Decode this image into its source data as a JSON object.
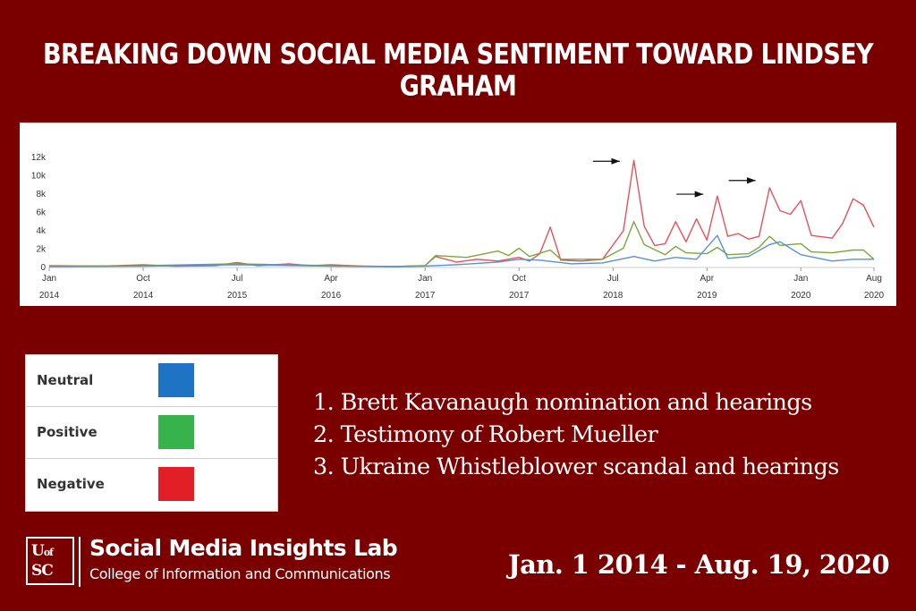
{
  "title": "BREAKING DOWN SOCIAL MEDIA SENTIMENT TOWARD LINDSEY GRAHAM",
  "chart_data": {
    "type": "line",
    "y_ticks": [
      "0",
      "2k",
      "4k",
      "6k",
      "8k",
      "10k",
      "12k"
    ],
    "y_tick_values": [
      0,
      2000,
      4000,
      6000,
      8000,
      10000,
      12000
    ],
    "ylim": [
      0,
      12500
    ],
    "x_tick_labels": [
      {
        "m": "Jan",
        "y": "2014",
        "x": "2014-01"
      },
      {
        "m": "Oct",
        "y": "2014",
        "x": "2014-10"
      },
      {
        "m": "Jul",
        "y": "2015",
        "x": "2015-07"
      },
      {
        "m": "Apr",
        "y": "2016",
        "x": "2016-04"
      },
      {
        "m": "Jan",
        "y": "2017",
        "x": "2017-01"
      },
      {
        "m": "Oct",
        "y": "2017",
        "x": "2017-10"
      },
      {
        "m": "Jul",
        "y": "2018",
        "x": "2018-07"
      },
      {
        "m": "Apr",
        "y": "2019",
        "x": "2019-04"
      },
      {
        "m": "Jan",
        "y": "2020",
        "x": "2020-01"
      },
      {
        "m": "Aug",
        "y": "2020",
        "x": "2020-08"
      }
    ],
    "xlim": [
      "2014-01",
      "2020-08"
    ],
    "grid": false,
    "series": [
      {
        "name": "Negative",
        "color": "#e8505b",
        "points": [
          [
            "2014-01",
            200
          ],
          [
            "2014-06",
            150
          ],
          [
            "2014-10",
            300
          ],
          [
            "2015-01",
            150
          ],
          [
            "2015-05",
            200
          ],
          [
            "2015-07",
            550
          ],
          [
            "2015-09",
            200
          ],
          [
            "2015-12",
            400
          ],
          [
            "2016-02",
            200
          ],
          [
            "2016-04",
            300
          ],
          [
            "2016-07",
            150
          ],
          [
            "2016-10",
            100
          ],
          [
            "2017-01",
            200
          ],
          [
            "2017-02",
            1200
          ],
          [
            "2017-04",
            600
          ],
          [
            "2017-06",
            900
          ],
          [
            "2017-08",
            700
          ],
          [
            "2017-10",
            1100
          ],
          [
            "2017-11",
            700
          ],
          [
            "2017-12",
            1500
          ],
          [
            "2018-01",
            4400
          ],
          [
            "2018-02",
            800
          ],
          [
            "2018-04",
            700
          ],
          [
            "2018-06",
            900
          ],
          [
            "2018-08",
            4000
          ],
          [
            "2018-09",
            11700
          ],
          [
            "2018-10",
            4500
          ],
          [
            "2018-11",
            2400
          ],
          [
            "2018-12",
            2600
          ],
          [
            "2019-01",
            5000
          ],
          [
            "2019-02",
            2800
          ],
          [
            "2019-03",
            5300
          ],
          [
            "2019-04",
            3000
          ],
          [
            "2019-05",
            7800
          ],
          [
            "2019-06",
            3400
          ],
          [
            "2019-07",
            3700
          ],
          [
            "2019-08",
            3100
          ],
          [
            "2019-09",
            3400
          ],
          [
            "2019-10",
            8700
          ],
          [
            "2019-11",
            6200
          ],
          [
            "2019-12",
            5800
          ],
          [
            "2020-01",
            7300
          ],
          [
            "2020-02",
            3500
          ],
          [
            "2020-04",
            3200
          ],
          [
            "2020-05",
            4800
          ],
          [
            "2020-06",
            7500
          ],
          [
            "2020-07",
            6800
          ],
          [
            "2020-08",
            4400
          ]
        ]
      },
      {
        "name": "Positive",
        "color": "#7aa83b",
        "points": [
          [
            "2014-01",
            150
          ],
          [
            "2014-10",
            200
          ],
          [
            "2015-07",
            400
          ],
          [
            "2016-04",
            200
          ],
          [
            "2016-10",
            100
          ],
          [
            "2017-01",
            200
          ],
          [
            "2017-02",
            1300
          ],
          [
            "2017-05",
            1100
          ],
          [
            "2017-08",
            1800
          ],
          [
            "2017-09",
            1300
          ],
          [
            "2017-10",
            2100
          ],
          [
            "2017-11",
            1200
          ],
          [
            "2018-01",
            1900
          ],
          [
            "2018-02",
            900
          ],
          [
            "2018-06",
            900
          ],
          [
            "2018-08",
            2100
          ],
          [
            "2018-09",
            5000
          ],
          [
            "2018-10",
            2500
          ],
          [
            "2018-12",
            1400
          ],
          [
            "2019-01",
            2300
          ],
          [
            "2019-02",
            1600
          ],
          [
            "2019-04",
            1500
          ],
          [
            "2019-05",
            2200
          ],
          [
            "2019-06",
            1400
          ],
          [
            "2019-08",
            1500
          ],
          [
            "2019-09",
            2200
          ],
          [
            "2019-10",
            3400
          ],
          [
            "2019-11",
            2400
          ],
          [
            "2020-01",
            2600
          ],
          [
            "2020-02",
            1700
          ],
          [
            "2020-04",
            1600
          ],
          [
            "2020-06",
            1900
          ],
          [
            "2020-07",
            1900
          ],
          [
            "2020-08",
            900
          ]
        ]
      },
      {
        "name": "Neutral",
        "color": "#5b8fd6",
        "points": [
          [
            "2014-01",
            100
          ],
          [
            "2014-10",
            150
          ],
          [
            "2015-07",
            300
          ],
          [
            "2016-04",
            150
          ],
          [
            "2016-10",
            80
          ],
          [
            "2017-01",
            150
          ],
          [
            "2017-04",
            300
          ],
          [
            "2017-08",
            600
          ],
          [
            "2017-10",
            900
          ],
          [
            "2017-12",
            800
          ],
          [
            "2018-03",
            400
          ],
          [
            "2018-06",
            500
          ],
          [
            "2018-09",
            1200
          ],
          [
            "2018-11",
            700
          ],
          [
            "2019-01",
            1100
          ],
          [
            "2019-03",
            900
          ],
          [
            "2019-05",
            3500
          ],
          [
            "2019-06",
            1000
          ],
          [
            "2019-08",
            1200
          ],
          [
            "2019-10",
            2500
          ],
          [
            "2019-11",
            2800
          ],
          [
            "2020-01",
            1400
          ],
          [
            "2020-04",
            700
          ],
          [
            "2020-06",
            900
          ],
          [
            "2020-08",
            900
          ]
        ]
      }
    ],
    "annotations": [
      {
        "type": "arrow",
        "x_end": "2018-08",
        "y": 11600
      },
      {
        "type": "arrow",
        "x_end": "2019-04",
        "y": 8000
      },
      {
        "type": "arrow",
        "x_end": "2019-09",
        "y": 9500
      }
    ]
  },
  "legend": [
    {
      "label": "Neutral",
      "color": "#1f73c4"
    },
    {
      "label": "Positive",
      "color": "#36b34a"
    },
    {
      "label": "Negative",
      "color": "#e21f26"
    }
  ],
  "events": [
    "1. Brett Kavanaugh nomination and hearings",
    "2. Testimony of Robert Mueller",
    "3. Ukraine Whistleblower scandal and hearings"
  ],
  "logo": {
    "line1": "UofSC",
    "line2": ""
  },
  "org": {
    "name": "Social Media Insights Lab",
    "sub": "College of Information and Communications"
  },
  "date_range": "Jan. 1 2014 - Aug. 19, 2020"
}
